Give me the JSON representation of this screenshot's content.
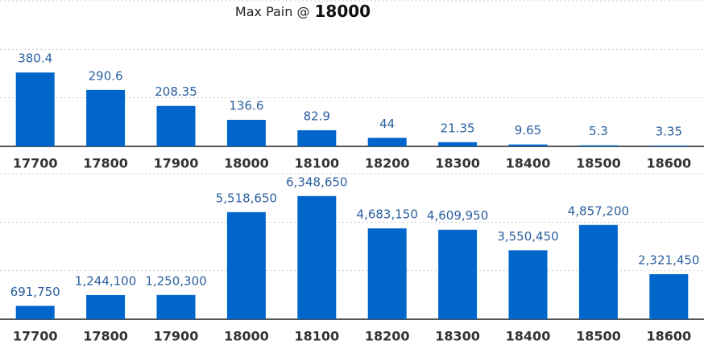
{
  "title": "Max Pain @",
  "title_value": "18000",
  "chart_data": [
    {
      "type": "bar",
      "categories": [
        "17700",
        "17800",
        "17900",
        "18000",
        "18100",
        "18200",
        "18300",
        "18400",
        "18500",
        "18600"
      ],
      "values": [
        380.4,
        290.6,
        208.35,
        136.6,
        82.9,
        44,
        21.35,
        9.65,
        5.3,
        3.35
      ],
      "color": "#0066cc",
      "ylim": [
        0,
        750
      ],
      "yticks": [
        0,
        250,
        500,
        750
      ],
      "grid": true
    },
    {
      "type": "bar",
      "categories": [
        "17700",
        "17800",
        "17900",
        "18000",
        "18100",
        "18200",
        "18300",
        "18400",
        "18500",
        "18600"
      ],
      "values": [
        691750,
        1244100,
        1250300,
        5518650,
        6348650,
        4683150,
        4609950,
        3550450,
        4857200,
        2321450
      ],
      "value_labels": [
        "691,750",
        "1,244,100",
        "1,250,300",
        "5,518,650",
        "6,348,650",
        "4,683,150",
        "4,609,950",
        "3,550,450",
        "4,857,200",
        "2,321,450"
      ],
      "color": "#0066cc",
      "ylim": [
        0,
        7500000
      ],
      "yticks": [
        0,
        2500000,
        5000000,
        7500000
      ],
      "grid": true
    }
  ]
}
